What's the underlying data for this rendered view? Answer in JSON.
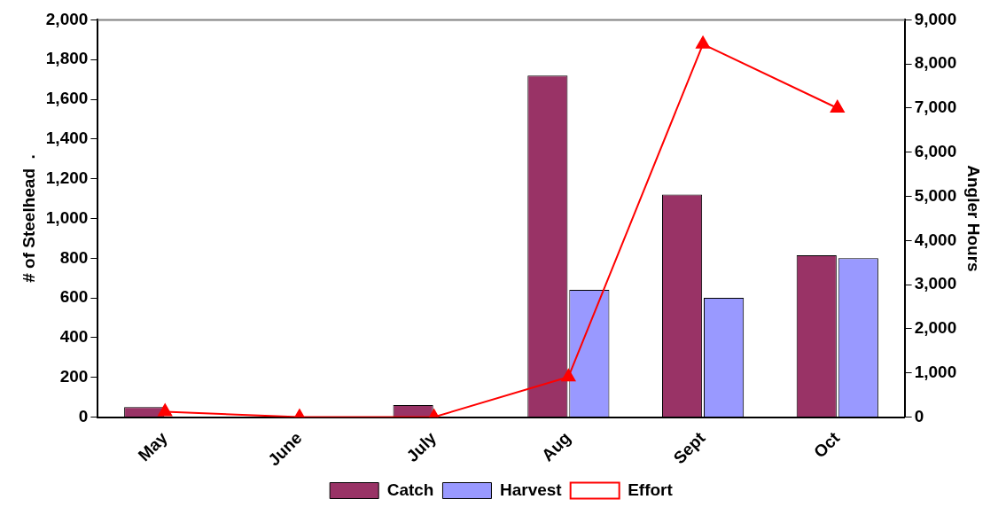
{
  "chart_data": {
    "type": "bar",
    "categories": [
      "May",
      "June",
      "July",
      "Aug",
      "Sept",
      "Oct"
    ],
    "ylabel": "# of Steelhead  .",
    "y2label": "Angler Hours",
    "series": [
      {
        "name": "Catch",
        "color": "#993366",
        "values": [
          50,
          0,
          60,
          1720,
          1120,
          815
        ]
      },
      {
        "name": "Harvest",
        "color": "#9999ff",
        "values": [
          0,
          0,
          0,
          640,
          600,
          800
        ]
      },
      {
        "name": "Effort",
        "type": "line",
        "axis": "y2",
        "color": "#ff0000",
        "values": [
          120,
          0,
          0,
          910,
          8450,
          7000
        ]
      }
    ],
    "ylim": [
      0,
      2000
    ],
    "yticks": [
      0,
      {
        "value": 200,
        "label": "200"
      },
      {
        "value": 400,
        "label": "400"
      },
      {
        "value": 600,
        "label": "600"
      },
      {
        "value": 800,
        "label": "800"
      },
      {
        "value": 1000,
        "label": "1,000"
      },
      {
        "value": 1200,
        "label": "1,200"
      },
      {
        "value": 1400,
        "label": "1,400"
      },
      {
        "value": 1600,
        "label": "1,600"
      },
      {
        "value": 1800,
        "label": "1,800"
      },
      {
        "value": 2000,
        "label": "2,000"
      }
    ],
    "y2lim": [
      0,
      9000
    ],
    "y2ticks": [
      0,
      {
        "value": 1000,
        "label": "1,000"
      },
      {
        "value": 2000,
        "label": "2,000"
      },
      {
        "value": 3000,
        "label": "3,000"
      },
      {
        "value": 4000,
        "label": "4,000"
      },
      {
        "value": 5000,
        "label": "5,000"
      },
      {
        "value": 6000,
        "label": "6,000"
      },
      {
        "value": 7000,
        "label": "7,000"
      },
      {
        "value": 8000,
        "label": "8,000"
      },
      {
        "value": 9000,
        "label": "9,000"
      }
    ],
    "legend": "bottom",
    "grid": false,
    "marker": "triangle",
    "line_style": "solid"
  }
}
